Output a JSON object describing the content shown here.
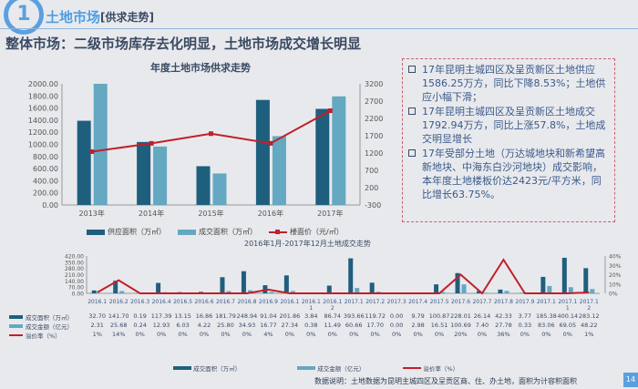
{
  "header": {
    "number": "1",
    "title": "土地市场",
    "subtitle": "[供求走势]"
  },
  "main_title": "整体市场：二级市场库存去化明显，土地市场成交增长明显",
  "info_bullets": [
    "17年昆明主城四区及呈贡新区土地供应1586.25万方，同比下降8.53%；土地供应小幅下滑；",
    "17年昆明主城四区及呈贡新区土地成交1792.94万方，同比上涨57.8%，土地成交明显增长",
    "17年受部分土地（万达城地块和新希望高新地块、中海东白沙河地块）成交影响，本年度土地楼板价达2423元/平方米，同比增长63.75%。"
  ],
  "chart_data": [
    {
      "type": "bar",
      "title": "年度土地市场供求走势",
      "categories": [
        "2013年",
        "2014年",
        "2015年",
        "2016年",
        "2017年"
      ],
      "ylim": [
        0,
        2000
      ],
      "y_ticks": [
        "0.00",
        "200.00",
        "400.00",
        "600.00",
        "800.00",
        "1000.00",
        "1200.00",
        "1400.00",
        "1600.00",
        "1800.00",
        "2000.00"
      ],
      "y2lim": [
        -300,
        3200
      ],
      "y2_ticks": [
        "-300",
        "200",
        "700",
        "1200",
        "1700",
        "2200",
        "2700",
        "3200"
      ],
      "series": [
        {
          "name": "供应面积（万㎡）",
          "kind": "bar",
          "axis": "left",
          "color": "#1f5f7e",
          "values": [
            1390,
            1040,
            640,
            1734,
            1586.25
          ]
        },
        {
          "name": "成交面积（万㎡）",
          "kind": "bar",
          "axis": "left",
          "color": "#64a8c2",
          "values": [
            2000,
            965,
            520,
            1136,
            1792.94
          ]
        },
        {
          "name": "楼面价（元/㎡）",
          "kind": "line",
          "axis": "right",
          "color": "#c0202a",
          "values": [
            1240,
            1480,
            1760,
            1480,
            2423
          ]
        }
      ],
      "legend": "bottom"
    },
    {
      "type": "bar",
      "title": "2016年1月-2017年12月土地成交走势",
      "categories": [
        "2016.1",
        "2016.2",
        "2016.3",
        "2016.4",
        "2016.5",
        "2016.6",
        "2016.7",
        "2016.8",
        "2016.9",
        "2016.1",
        "2016.11",
        "2016.12",
        "2017.1",
        "2017.2",
        "2017.3",
        "2017.4",
        "2017.5",
        "2017.6",
        "2017.7",
        "2017.8",
        "2017.9",
        "2017.1",
        "2017.11",
        "2017.12"
      ],
      "ylim": [
        0,
        420
      ],
      "y_ticks": [
        "0.00",
        "70.00",
        "140.00",
        "210.00",
        "280.00",
        "350.00",
        "420.00"
      ],
      "y2lim": [
        0,
        40
      ],
      "y2_ticks": [
        "0%",
        "10%",
        "20%",
        "30%",
        "40%"
      ],
      "series": [
        {
          "name": "成交面积（万㎡）",
          "kind": "bar",
          "color": "#1f5f7e",
          "values": [
            "32.70",
            "141.70",
            "0.19",
            "117.39",
            "13.15",
            "16.86",
            "181.79",
            "248.94",
            "91.04",
            "201.86",
            "3.84",
            "86.74",
            "393.66",
            "119.72",
            "0.00",
            "9.79",
            "100.87",
            "228.01",
            "26.14",
            "42.33",
            "3.77",
            "185.38",
            "400.14",
            "283.12"
          ]
        },
        {
          "name": "成交金额（亿元）",
          "kind": "bar",
          "color": "#64a8c2",
          "values": [
            "2.31",
            "25.68",
            "0.24",
            "12.93",
            "6.03",
            "4.22",
            "25.80",
            "34.93",
            "16.77",
            "27.34",
            "0.38",
            "11.49",
            "60.66",
            "17.70",
            "0.00",
            "2.98",
            "16.51",
            "100.69",
            "7.40",
            "27.78",
            "0.33",
            "83.06",
            "69.05",
            "48.22"
          ]
        },
        {
          "name": "溢价率（%）",
          "kind": "line",
          "color": "#c0202a",
          "values": [
            "1%",
            "14%",
            "0%",
            "0%",
            "0%",
            "0%",
            "0%",
            "0%",
            "4%",
            "0%",
            "0%",
            "0%",
            "0%",
            "0%",
            "0%",
            "0%",
            "0%",
            "20%",
            "0%",
            "36%",
            "0%",
            "0%",
            "0%",
            "1%"
          ]
        }
      ],
      "legend": "bottom"
    }
  ],
  "footnote": "数据说明：土地数据为昆明主城四区及呈贡区商、住、办土地，面积为计容积面积",
  "page_number": "14"
}
